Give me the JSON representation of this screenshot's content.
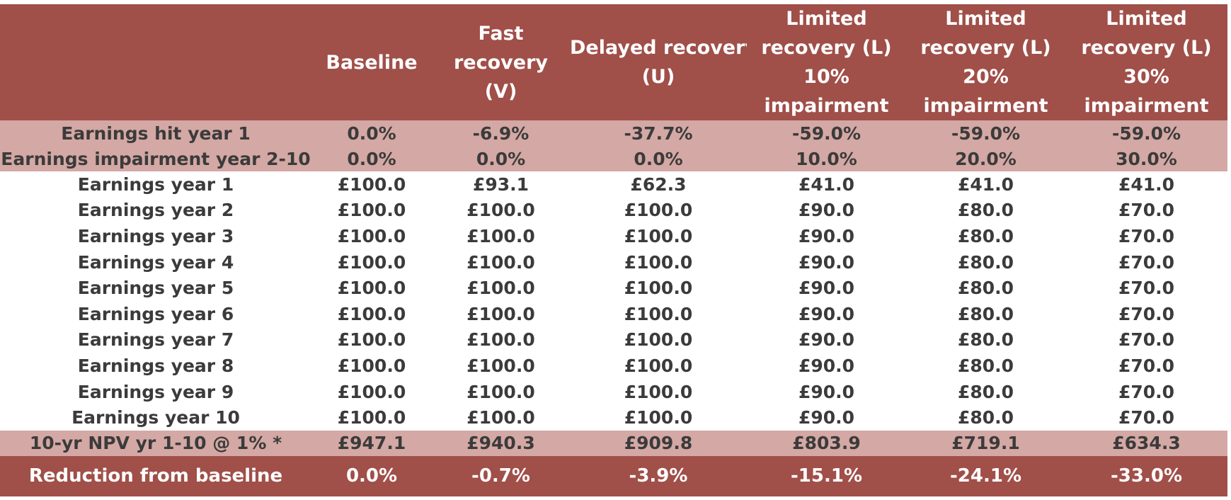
{
  "table": {
    "headers": [
      "",
      "Baseline",
      "Fast recovery (V)",
      "Delayed recovery (U)",
      "Limited recovery (L) 10% impairment",
      "Limited recovery (L) 20% impairment",
      "Limited recovery (L) 30% impairment"
    ],
    "header_lines": [
      [],
      [
        "Baseline"
      ],
      [
        "Fast",
        "recovery",
        "(V)"
      ],
      [
        "Delayed recovery",
        "(U)"
      ],
      [
        "Limited",
        "recovery (L)",
        "10%",
        "impairment"
      ],
      [
        "Limited",
        "recovery (L)",
        "20%",
        "impairment"
      ],
      [
        "Limited",
        "recovery (L)",
        "30%",
        "impairment"
      ]
    ],
    "rows": [
      {
        "style": "pink",
        "cells": [
          "Earnings hit year 1",
          "0.0%",
          "-6.9%",
          "-37.7%",
          "-59.0%",
          "-59.0%",
          "-59.0%"
        ]
      },
      {
        "style": "pink",
        "cells": [
          "Earnings impairment year 2-10",
          "0.0%",
          "0.0%",
          "0.0%",
          "10.0%",
          "20.0%",
          "30.0%"
        ]
      },
      {
        "style": "plain",
        "cells": [
          "Earnings year 1",
          "£100.0",
          "£93.1",
          "£62.3",
          "£41.0",
          "£41.0",
          "£41.0"
        ]
      },
      {
        "style": "plain",
        "cells": [
          "Earnings year 2",
          "£100.0",
          "£100.0",
          "£100.0",
          "£90.0",
          "£80.0",
          "£70.0"
        ]
      },
      {
        "style": "plain",
        "cells": [
          "Earnings year 3",
          "£100.0",
          "£100.0",
          "£100.0",
          "£90.0",
          "£80.0",
          "£70.0"
        ]
      },
      {
        "style": "plain",
        "cells": [
          "Earnings year 4",
          "£100.0",
          "£100.0",
          "£100.0",
          "£90.0",
          "£80.0",
          "£70.0"
        ]
      },
      {
        "style": "plain",
        "cells": [
          "Earnings year 5",
          "£100.0",
          "£100.0",
          "£100.0",
          "£90.0",
          "£80.0",
          "£70.0"
        ]
      },
      {
        "style": "plain",
        "cells": [
          "Earnings year 6",
          "£100.0",
          "£100.0",
          "£100.0",
          "£90.0",
          "£80.0",
          "£70.0"
        ]
      },
      {
        "style": "plain",
        "cells": [
          "Earnings year 7",
          "£100.0",
          "£100.0",
          "£100.0",
          "£90.0",
          "£80.0",
          "£70.0"
        ]
      },
      {
        "style": "plain",
        "cells": [
          "Earnings year 8",
          "£100.0",
          "£100.0",
          "£100.0",
          "£90.0",
          "£80.0",
          "£70.0"
        ]
      },
      {
        "style": "plain",
        "cells": [
          "Earnings year 9",
          "£100.0",
          "£100.0",
          "£100.0",
          "£90.0",
          "£80.0",
          "£70.0"
        ]
      },
      {
        "style": "plain",
        "cells": [
          "Earnings year 10",
          "£100.0",
          "£100.0",
          "£100.0",
          "£90.0",
          "£80.0",
          "£70.0"
        ]
      },
      {
        "style": "npv",
        "cells": [
          "10-yr NPV yr 1-10 @ 1% *",
          "£947.1",
          "£940.3",
          "£909.8",
          "£803.9",
          "£719.1",
          "£634.3"
        ]
      },
      {
        "style": "red",
        "cells": [
          "Reduction from baseline",
          "0.0%",
          "-0.7%",
          "-3.9%",
          "-15.1%",
          "-24.1%",
          "-33.0%"
        ]
      }
    ]
  },
  "colors": {
    "header_bg": "#a04f49",
    "band_bg": "#d4a8a4",
    "text_dark": "#3b3b3b",
    "text_light": "#ffffff"
  }
}
